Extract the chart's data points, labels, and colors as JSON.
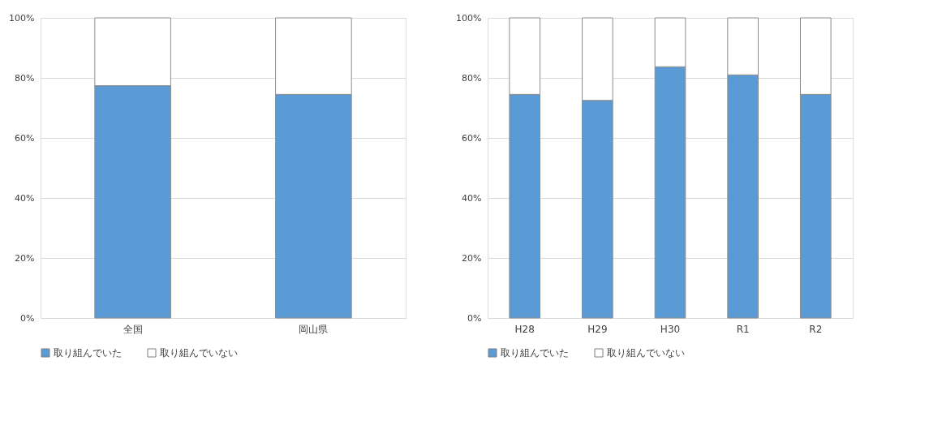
{
  "chart_data": [
    {
      "type": "bar",
      "stacked": true,
      "categories": [
        "全国",
        "岡山県"
      ],
      "series": [
        {
          "name": "取り組んでいた",
          "color": "#5b9bd5",
          "values": [
            77.4,
            74.5
          ]
        },
        {
          "name": "取り組んでいない",
          "color": "#ffffff",
          "values": [
            22.6,
            25.5
          ]
        }
      ],
      "ylim": [
        0,
        100
      ],
      "yticks": [
        {
          "value": 0,
          "label": "0%"
        },
        {
          "value": 20,
          "label": "20%"
        },
        {
          "value": 40,
          "label": "40%"
        },
        {
          "value": 60,
          "label": "60%"
        },
        {
          "value": 80,
          "label": "80%"
        },
        {
          "value": 100,
          "label": "100%"
        }
      ],
      "grid": "y",
      "legend": "bottom"
    },
    {
      "type": "bar",
      "stacked": true,
      "categories": [
        "H28",
        "H29",
        "H30",
        "R1",
        "R2"
      ],
      "series": [
        {
          "name": "取り組んでいた",
          "color": "#5b9bd5",
          "values": [
            74.5,
            72.5,
            83.7,
            81,
            74.5
          ]
        },
        {
          "name": "取り組んでいない",
          "color": "#ffffff",
          "values": [
            25.5,
            27.5,
            16.3,
            19,
            25.5
          ]
        }
      ],
      "ylim": [
        0,
        100
      ],
      "yticks": [
        {
          "value": 0,
          "label": "0%"
        },
        {
          "value": 20,
          "label": "20%"
        },
        {
          "value": 40,
          "label": "40%"
        },
        {
          "value": 60,
          "label": "60%"
        },
        {
          "value": 80,
          "label": "80%"
        },
        {
          "value": 100,
          "label": "100%"
        }
      ],
      "grid": "y",
      "legend": "bottom"
    }
  ]
}
